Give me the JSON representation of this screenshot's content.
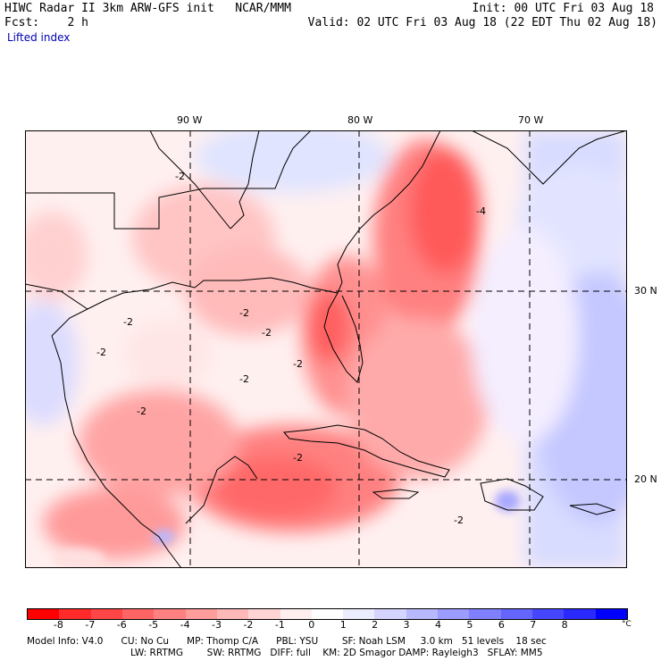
{
  "header": {
    "title": "HIWC Radar II 3km ARW-GFS init   NCAR/MMM",
    "init": "Init: 00 UTC Fri 03 Aug 18",
    "fcst": "Fcst:    2 h",
    "valid": "Valid: 02 UTC Fri 03 Aug 18 (22 EDT Thu 02 Aug 18)",
    "field": "Lifted index"
  },
  "map": {
    "lon_labels": [
      "90 W",
      "80 W",
      "70 W"
    ],
    "lat_labels": [
      "30 N",
      "20 N"
    ],
    "contour_labels": [
      "-2",
      "-2",
      "-2",
      "-2",
      "-2",
      "-2",
      "-2",
      "-2",
      "-2",
      "-4",
      "-2"
    ]
  },
  "colorbar": {
    "tick_labels": [
      "-8",
      "-7",
      "-6",
      "-5",
      "-4",
      "-3",
      "-2",
      "-1",
      "0",
      "1",
      "2",
      "3",
      "4",
      "5",
      "6",
      "7",
      "8"
    ],
    "unit": "°C",
    "colors": [
      "#ff0000",
      "#ff2a2a",
      "#ff4646",
      "#ff6464",
      "#ff8080",
      "#ff9c9c",
      "#ffb8b8",
      "#ffd4d4",
      "#ffeeee",
      "#ffffff",
      "#ececff",
      "#d4d4ff",
      "#b8b8ff",
      "#9c9cff",
      "#8080ff",
      "#6464ff",
      "#4646ff",
      "#2a2aff",
      "#0000ff"
    ]
  },
  "info": {
    "line1": "Model Info: V4.0      CU: No Cu      MP: Thomp C/A      PBL: YSU        SF: Noah LSM     3.0 km   51 levels    18 sec",
    "line2": "LW: RRTMG        SW: RRTMG   DIFF: full    KM: 2D Smagor DAMP: Rayleigh3   SFLAY: MM5"
  }
}
